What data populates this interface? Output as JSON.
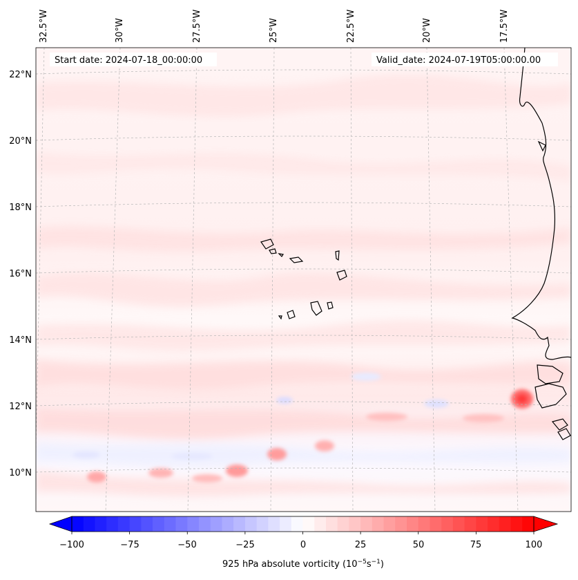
{
  "map": {
    "start_date": "Start date: 2024-07-18_00:00:00",
    "valid_date": "Valid_date: 2024-07-19T05:00:00.00",
    "lon_labels": [
      "32.5°W",
      "30°W",
      "27.5°W",
      "25°W",
      "22.5°W",
      "20°W",
      "17.5°W"
    ],
    "lat_labels": [
      "22°N",
      "20°N",
      "18°N",
      "16°N",
      "14°N",
      "12°N",
      "10°N"
    ]
  },
  "colorbar": {
    "tick_labels": [
      "−100",
      "−75",
      "−50",
      "−25",
      "0",
      "25",
      "50",
      "75",
      "100"
    ],
    "title": "925 hPa absolute vorticity (10",
    "title_exp1": "−5",
    "title_mid": "s",
    "title_exp2": "−1",
    "title_end": ")",
    "vmin": -100,
    "vmax": 100,
    "colormap": "bwr",
    "extend": "both"
  },
  "colors": {
    "coastline": "#000000",
    "gridline": "#b0b0b0",
    "positive_max": "#ff0000",
    "negative_max": "#0000ff"
  }
}
